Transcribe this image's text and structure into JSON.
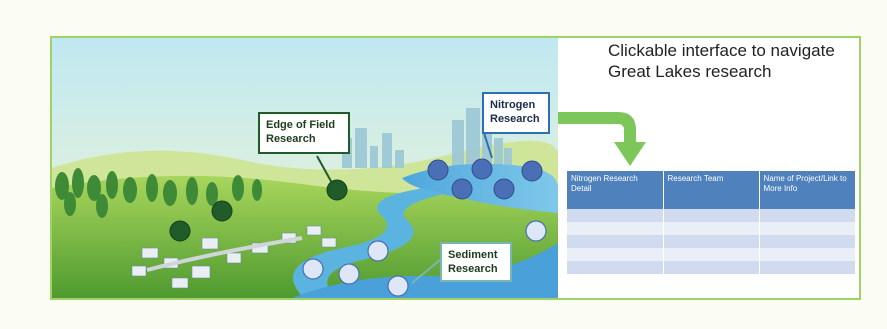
{
  "header": {
    "title_line1": "Clickable interface to navigate",
    "title_line2": "Great Lakes research"
  },
  "callouts": {
    "edge_of_field": {
      "line1": "Edge of Field",
      "line2": "Research"
    },
    "nitrogen": {
      "line1": "Nitrogen",
      "line2": "Research"
    },
    "sediment": {
      "line1": "Sediment",
      "line2": "Research"
    }
  },
  "table": {
    "headers": [
      "Nitrogen Research Detail",
      "Research Team",
      "Name of Project/Link to More Info"
    ],
    "rows": [
      [
        "",
        "",
        ""
      ],
      [
        "",
        "",
        ""
      ],
      [
        "",
        "",
        ""
      ],
      [
        "",
        "",
        ""
      ],
      [
        "",
        "",
        ""
      ]
    ]
  },
  "colors": {
    "edge_of_field_dot": "#1f5c2a",
    "nitrogen_dot": "#4a6fb7",
    "sediment_dot": "#dde7f5",
    "table_header": "#4f81bd",
    "arrow": "#7dc75a",
    "frame_border": "#9fd36a"
  },
  "icons": {
    "arrow": "curved-arrow-down-icon"
  }
}
